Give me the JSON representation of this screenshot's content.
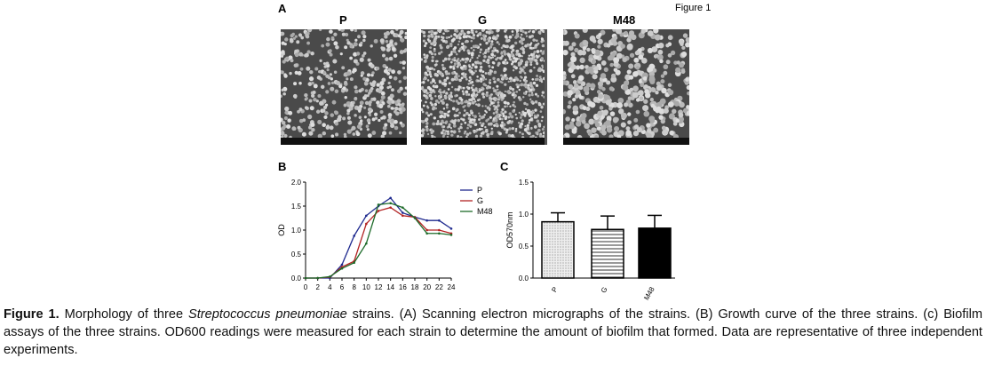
{
  "figure_label": "Figure 1",
  "panel_a": {
    "label": "A",
    "strains": [
      "P",
      "G",
      "M48"
    ]
  },
  "chart_data": [
    {
      "type": "line",
      "panel": "B",
      "title": "",
      "xlabel": "",
      "ylabel": "OD",
      "x": [
        0,
        2,
        4,
        6,
        8,
        10,
        12,
        14,
        16,
        18,
        20,
        22,
        24
      ],
      "xticks": [
        "0",
        "2",
        "4",
        "6",
        "8",
        "10",
        "12",
        "14",
        "16",
        "18",
        "20",
        "22",
        "24"
      ],
      "yticks": [
        "0.0",
        "0.5",
        "1.0",
        "1.5",
        "2.0"
      ],
      "xlim": [
        0,
        24
      ],
      "ylim": [
        0,
        2.0
      ],
      "legend_position": "right",
      "series": [
        {
          "name": "P",
          "color": "#1f2a8f",
          "values": [
            0,
            0,
            0,
            0.28,
            0.88,
            1.3,
            1.5,
            1.67,
            1.36,
            1.27,
            1.2,
            1.2,
            1.03
          ]
        },
        {
          "name": "G",
          "color": "#b22222",
          "values": [
            0,
            0,
            0.02,
            0.23,
            0.35,
            1.13,
            1.4,
            1.47,
            1.3,
            1.27,
            1.0,
            1.0,
            0.93
          ]
        },
        {
          "name": "M48",
          "color": "#1e6b2a",
          "values": [
            0,
            0,
            0.03,
            0.2,
            0.32,
            0.72,
            1.53,
            1.56,
            1.47,
            1.25,
            0.93,
            0.93,
            0.9
          ]
        }
      ]
    },
    {
      "type": "bar",
      "panel": "C",
      "ylabel": "OD570nm",
      "categories": [
        "P",
        "G",
        "M48"
      ],
      "values": [
        0.88,
        0.76,
        0.78
      ],
      "errors": [
        0.14,
        0.21,
        0.2
      ],
      "fills": [
        "dotted",
        "horizontal-lines",
        "solid-black"
      ],
      "yticks": [
        "0.0",
        "0.5",
        "1.0",
        "1.5"
      ],
      "ylim": [
        0,
        1.5
      ]
    }
  ],
  "caption": {
    "bold": "Figure 1.",
    "text1": " Morphology of three ",
    "italic": "Streptococcus pneumoniae",
    "text2": " strains. (A) Scanning electron micrographs of the strains. (B) Growth curve of the three strains. (c) Biofilm assays of the three strains. OD600 readings were measured for each strain to determine the amount of biofilm that formed. Data are representative of three independent experiments."
  }
}
